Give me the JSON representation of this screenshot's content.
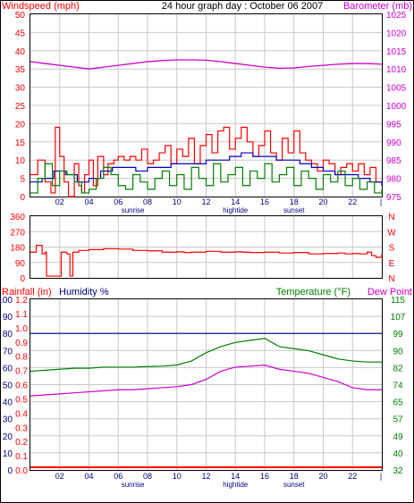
{
  "header": {
    "title": "24 hour graph day : October 06 2007",
    "left_label": "Windspeed (mph)",
    "right_label": "Barometer (mb)"
  },
  "colors": {
    "windspeed": "#ff0000",
    "wind_avg": "#0000c0",
    "wind_green": "#008000",
    "barometer": "#cc00cc",
    "humidity": "#000080",
    "temperature": "#008000",
    "dewpoint": "#cc00cc",
    "rainfall": "#ff0000",
    "grid": "#c8c8c8"
  },
  "x_axis": {
    "ticks": [
      "02",
      "04",
      "06",
      "08",
      "10",
      "12",
      "14",
      "16",
      "18",
      "20",
      "22"
    ],
    "end_tick": "|",
    "markers": [
      {
        "label": "sunrise",
        "at_hour": 7
      },
      {
        "label": "hightide",
        "at_hour": 14
      },
      {
        "label": "sunset",
        "at_hour": 18
      }
    ]
  },
  "chart_data": [
    {
      "type": "line",
      "name": "wind-barometer",
      "title": "24 hour graph day : October 06 2007",
      "ylabel": "Windspeed (mph)",
      "y2label": "Barometer (mb)",
      "xlim": [
        0,
        24
      ],
      "ylim": [
        0,
        50
      ],
      "y_ticks": [
        0,
        5,
        10,
        15,
        20,
        25,
        30,
        35,
        40,
        45,
        50
      ],
      "y2lim": [
        975,
        1025
      ],
      "y2_ticks": [
        975,
        980,
        985,
        990,
        995,
        1000,
        1005,
        1010,
        1015,
        1020,
        1025
      ],
      "series": [
        {
          "name": "Windspeed (mph)",
          "color": "#ff0000",
          "x": [
            0.0,
            0.5,
            1.0,
            1.4,
            1.7,
            2.0,
            2.3,
            2.6,
            3.0,
            3.3,
            3.5,
            3.7,
            4.0,
            4.3,
            4.6,
            5.0,
            5.3,
            5.7,
            6.0,
            6.4,
            6.8,
            7.2,
            7.6,
            8.0,
            8.4,
            8.8,
            9.2,
            9.6,
            10.0,
            10.4,
            10.8,
            11.2,
            11.6,
            12.0,
            12.4,
            12.8,
            13.2,
            13.6,
            14.0,
            14.4,
            14.8,
            15.2,
            15.6,
            16.0,
            16.4,
            16.8,
            17.2,
            17.6,
            18.0,
            18.4,
            18.8,
            19.2,
            19.6,
            20.0,
            20.4,
            20.8,
            21.2,
            21.6,
            22.0,
            22.4,
            22.8,
            23.2,
            23.6,
            24.0
          ],
          "y": [
            6,
            10,
            4,
            1,
            19,
            11,
            4,
            0,
            9,
            3,
            1,
            6,
            10,
            3,
            11,
            6,
            9,
            10,
            11,
            10,
            11,
            10,
            13,
            9,
            10,
            12,
            14,
            9,
            13,
            11,
            16,
            9,
            14,
            17,
            12,
            18,
            19,
            13,
            16,
            19,
            15,
            11,
            14,
            18,
            12,
            10,
            16,
            12,
            18,
            12,
            10,
            9,
            7,
            10,
            9,
            6,
            8,
            9,
            7,
            9,
            6,
            8,
            4,
            4
          ]
        },
        {
          "name": "Wind average",
          "color": "#0000c0",
          "x": [
            0.0,
            0.8,
            1.6,
            2.4,
            3.2,
            4.0,
            4.8,
            5.6,
            6.4,
            7.2,
            8.0,
            8.8,
            9.6,
            10.4,
            11.2,
            12.0,
            12.8,
            13.6,
            14.4,
            15.2,
            16.0,
            16.8,
            17.6,
            18.4,
            19.2,
            20.0,
            20.8,
            21.6,
            22.4,
            23.2,
            24.0
          ],
          "y": [
            4,
            5,
            7,
            6,
            4,
            5,
            7,
            8,
            8,
            7,
            8,
            8,
            9,
            9,
            9,
            10,
            10,
            11,
            12,
            11,
            11,
            10,
            10,
            9,
            8,
            7,
            6,
            6,
            5,
            4,
            3
          ]
        },
        {
          "name": "Wind gust low",
          "color": "#008000",
          "x": [
            0.0,
            0.5,
            1.0,
            1.5,
            2.0,
            2.5,
            3.0,
            3.5,
            4.0,
            4.5,
            5.0,
            5.5,
            6.0,
            6.5,
            7.0,
            7.5,
            8.0,
            8.5,
            9.0,
            9.5,
            10.0,
            10.5,
            11.0,
            11.5,
            12.0,
            12.5,
            13.0,
            13.5,
            14.0,
            14.5,
            15.0,
            15.5,
            16.0,
            16.5,
            17.0,
            17.5,
            18.0,
            18.5,
            19.0,
            19.5,
            20.0,
            20.5,
            21.0,
            21.5,
            22.0,
            22.5,
            23.0,
            23.5,
            24.0
          ],
          "y": [
            1,
            5,
            9,
            3,
            7,
            6,
            4,
            1,
            2,
            5,
            8,
            6,
            3,
            2,
            6,
            4,
            2,
            5,
            7,
            3,
            6,
            2,
            8,
            5,
            3,
            9,
            4,
            6,
            8,
            3,
            7,
            5,
            9,
            4,
            6,
            8,
            3,
            7,
            5,
            2,
            6,
            4,
            7,
            3,
            5,
            2,
            4,
            1,
            2
          ]
        },
        {
          "name": "Barometer (mb)",
          "color": "#cc00cc",
          "axis": "right",
          "x": [
            0,
            1,
            2,
            3,
            4,
            5,
            6,
            7,
            8,
            9,
            10,
            11,
            12,
            13,
            14,
            15,
            16,
            17,
            18,
            19,
            20,
            21,
            22,
            23,
            24
          ],
          "y": [
            1012,
            1011.5,
            1011,
            1010.5,
            1010,
            1010.5,
            1011,
            1011.5,
            1012,
            1012.3,
            1012.5,
            1012.5,
            1012.4,
            1012,
            1011.5,
            1011,
            1010.5,
            1010.2,
            1010.3,
            1010.7,
            1011,
            1011.3,
            1011.5,
            1011.5,
            1011.3
          ]
        }
      ]
    },
    {
      "type": "line",
      "name": "wind-direction",
      "xlim": [
        0,
        24
      ],
      "ylim": [
        0,
        360
      ],
      "y_ticks": [
        0,
        90,
        180,
        270,
        360
      ],
      "y2_ticks": [
        "N",
        "E",
        "S",
        "W",
        "N"
      ],
      "series": [
        {
          "name": "Wind direction",
          "color": "#ff0000",
          "x": [
            0.0,
            0.4,
            0.8,
            1.0,
            1.1,
            1.5,
            2.0,
            2.1,
            2.5,
            2.7,
            2.9,
            3.3,
            4.0,
            5.0,
            6.0,
            7.0,
            8.0,
            9.0,
            10.0,
            10.5,
            11.0,
            12.0,
            13.0,
            14.0,
            14.5,
            15.0,
            16.0,
            17.0,
            18.0,
            19.0,
            20.0,
            21.0,
            21.5,
            22.0,
            22.5,
            23.0,
            23.3,
            23.6,
            24.0
          ],
          "y": [
            150,
            190,
            140,
            150,
            10,
            10,
            10,
            150,
            140,
            10,
            150,
            160,
            165,
            170,
            168,
            160,
            158,
            150,
            152,
            148,
            150,
            155,
            150,
            152,
            150,
            148,
            150,
            145,
            148,
            140,
            142,
            145,
            140,
            142,
            140,
            150,
            130,
            120,
            140
          ]
        }
      ]
    },
    {
      "type": "line",
      "name": "rain-humidity-temperature",
      "xlim": [
        0,
        24
      ],
      "ylabel": "Rainfall (in)",
      "ylabel2": "Humidity %",
      "y2label": "Temperature (°F)",
      "y2label2": "Dew Point",
      "left_ticks_rain": [
        "0.0",
        "0.1",
        "0.2",
        "0.3",
        "0.4",
        "0.5",
        "0.6",
        "0.7",
        "0.8",
        "0.9",
        "1.0",
        "1.1",
        "1.2"
      ],
      "left_ticks_humidity": [
        "0",
        "10",
        "20",
        "30",
        "40",
        "50",
        "60",
        "70",
        "80",
        "90",
        "100"
      ],
      "right_ticks": [
        "32",
        "40",
        "49",
        "57",
        "65",
        "74",
        "82",
        "90",
        "99",
        "107",
        "115"
      ],
      "ylim": [
        0,
        100
      ],
      "y2lim": [
        32,
        115
      ],
      "series": [
        {
          "name": "Humidity %",
          "color": "#000080",
          "x": [
            0,
            24
          ],
          "y": [
            80,
            80
          ]
        },
        {
          "name": "Temperature (°F)",
          "color": "#008000",
          "axis": "right",
          "x": [
            0,
            1,
            2,
            3,
            4,
            5,
            6,
            7,
            8,
            9,
            10,
            11,
            12,
            13,
            14,
            15,
            16,
            17,
            18,
            19,
            20,
            21,
            22,
            23,
            24
          ],
          "y": [
            80,
            80.5,
            81,
            81.5,
            81.5,
            82,
            82,
            82,
            82.3,
            82.5,
            83,
            85,
            89,
            92,
            94,
            95,
            96,
            92,
            91,
            90,
            88,
            86,
            85,
            84.5,
            84.5
          ]
        },
        {
          "name": "Dew Point",
          "color": "#cc00cc",
          "axis": "right",
          "x": [
            0,
            1,
            2,
            3,
            4,
            5,
            6,
            7,
            8,
            9,
            10,
            11,
            12,
            13,
            14,
            15,
            16,
            17,
            18,
            19,
            20,
            21,
            22,
            23,
            24
          ],
          "y": [
            68,
            68.5,
            69,
            69.5,
            70,
            70.5,
            71,
            71,
            71.5,
            72,
            72.5,
            73.5,
            76,
            80,
            82,
            82.5,
            83,
            81,
            80,
            79,
            77,
            75,
            72,
            71,
            71
          ]
        },
        {
          "name": "Rainfall (in)",
          "color": "#ff0000",
          "x": [
            0,
            24
          ],
          "y": [
            0.0,
            0.0
          ]
        }
      ]
    }
  ]
}
